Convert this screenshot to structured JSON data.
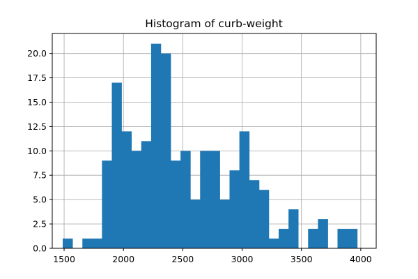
{
  "chart_data": {
    "type": "bar",
    "title": "Histogram of curb-weight",
    "xlabel": "",
    "ylabel": "",
    "xlim": [
      1400,
      4130
    ],
    "ylim": [
      0,
      22.05
    ],
    "grid": true,
    "color": "#1f77b4",
    "xticks": [
      1500,
      2000,
      2500,
      3000,
      3500,
      4000
    ],
    "yticks": [
      "0.0",
      "2.5",
      "5.0",
      "7.5",
      "10.0",
      "12.5",
      "15.0",
      "17.5",
      "20.0"
    ],
    "bins": [
      {
        "x0": 1488,
        "x1": 1571,
        "count": 1
      },
      {
        "x0": 1571,
        "x1": 1654,
        "count": 0
      },
      {
        "x0": 1654,
        "x1": 1736,
        "count": 1
      },
      {
        "x0": 1736,
        "x1": 1819,
        "count": 1
      },
      {
        "x0": 1819,
        "x1": 1902,
        "count": 9
      },
      {
        "x0": 1902,
        "x1": 1984,
        "count": 17
      },
      {
        "x0": 1984,
        "x1": 2067,
        "count": 12
      },
      {
        "x0": 2067,
        "x1": 2150,
        "count": 10
      },
      {
        "x0": 2150,
        "x1": 2233,
        "count": 11
      },
      {
        "x0": 2233,
        "x1": 2315,
        "count": 21
      },
      {
        "x0": 2315,
        "x1": 2398,
        "count": 20
      },
      {
        "x0": 2398,
        "x1": 2481,
        "count": 9
      },
      {
        "x0": 2481,
        "x1": 2564,
        "count": 10
      },
      {
        "x0": 2564,
        "x1": 2646,
        "count": 5
      },
      {
        "x0": 2646,
        "x1": 2729,
        "count": 10
      },
      {
        "x0": 2729,
        "x1": 2812,
        "count": 10
      },
      {
        "x0": 2812,
        "x1": 2894,
        "count": 5
      },
      {
        "x0": 2894,
        "x1": 2977,
        "count": 8
      },
      {
        "x0": 2977,
        "x1": 3060,
        "count": 12
      },
      {
        "x0": 3060,
        "x1": 3143,
        "count": 7
      },
      {
        "x0": 3143,
        "x1": 3225,
        "count": 6
      },
      {
        "x0": 3225,
        "x1": 3308,
        "count": 1
      },
      {
        "x0": 3308,
        "x1": 3391,
        "count": 2
      },
      {
        "x0": 3391,
        "x1": 3473,
        "count": 4
      },
      {
        "x0": 3473,
        "x1": 3556,
        "count": 0
      },
      {
        "x0": 3556,
        "x1": 3639,
        "count": 2
      },
      {
        "x0": 3639,
        "x1": 3722,
        "count": 3
      },
      {
        "x0": 3722,
        "x1": 3804,
        "count": 0
      },
      {
        "x0": 3804,
        "x1": 3887,
        "count": 2
      },
      {
        "x0": 3887,
        "x1": 3970,
        "count": 2
      }
    ]
  }
}
